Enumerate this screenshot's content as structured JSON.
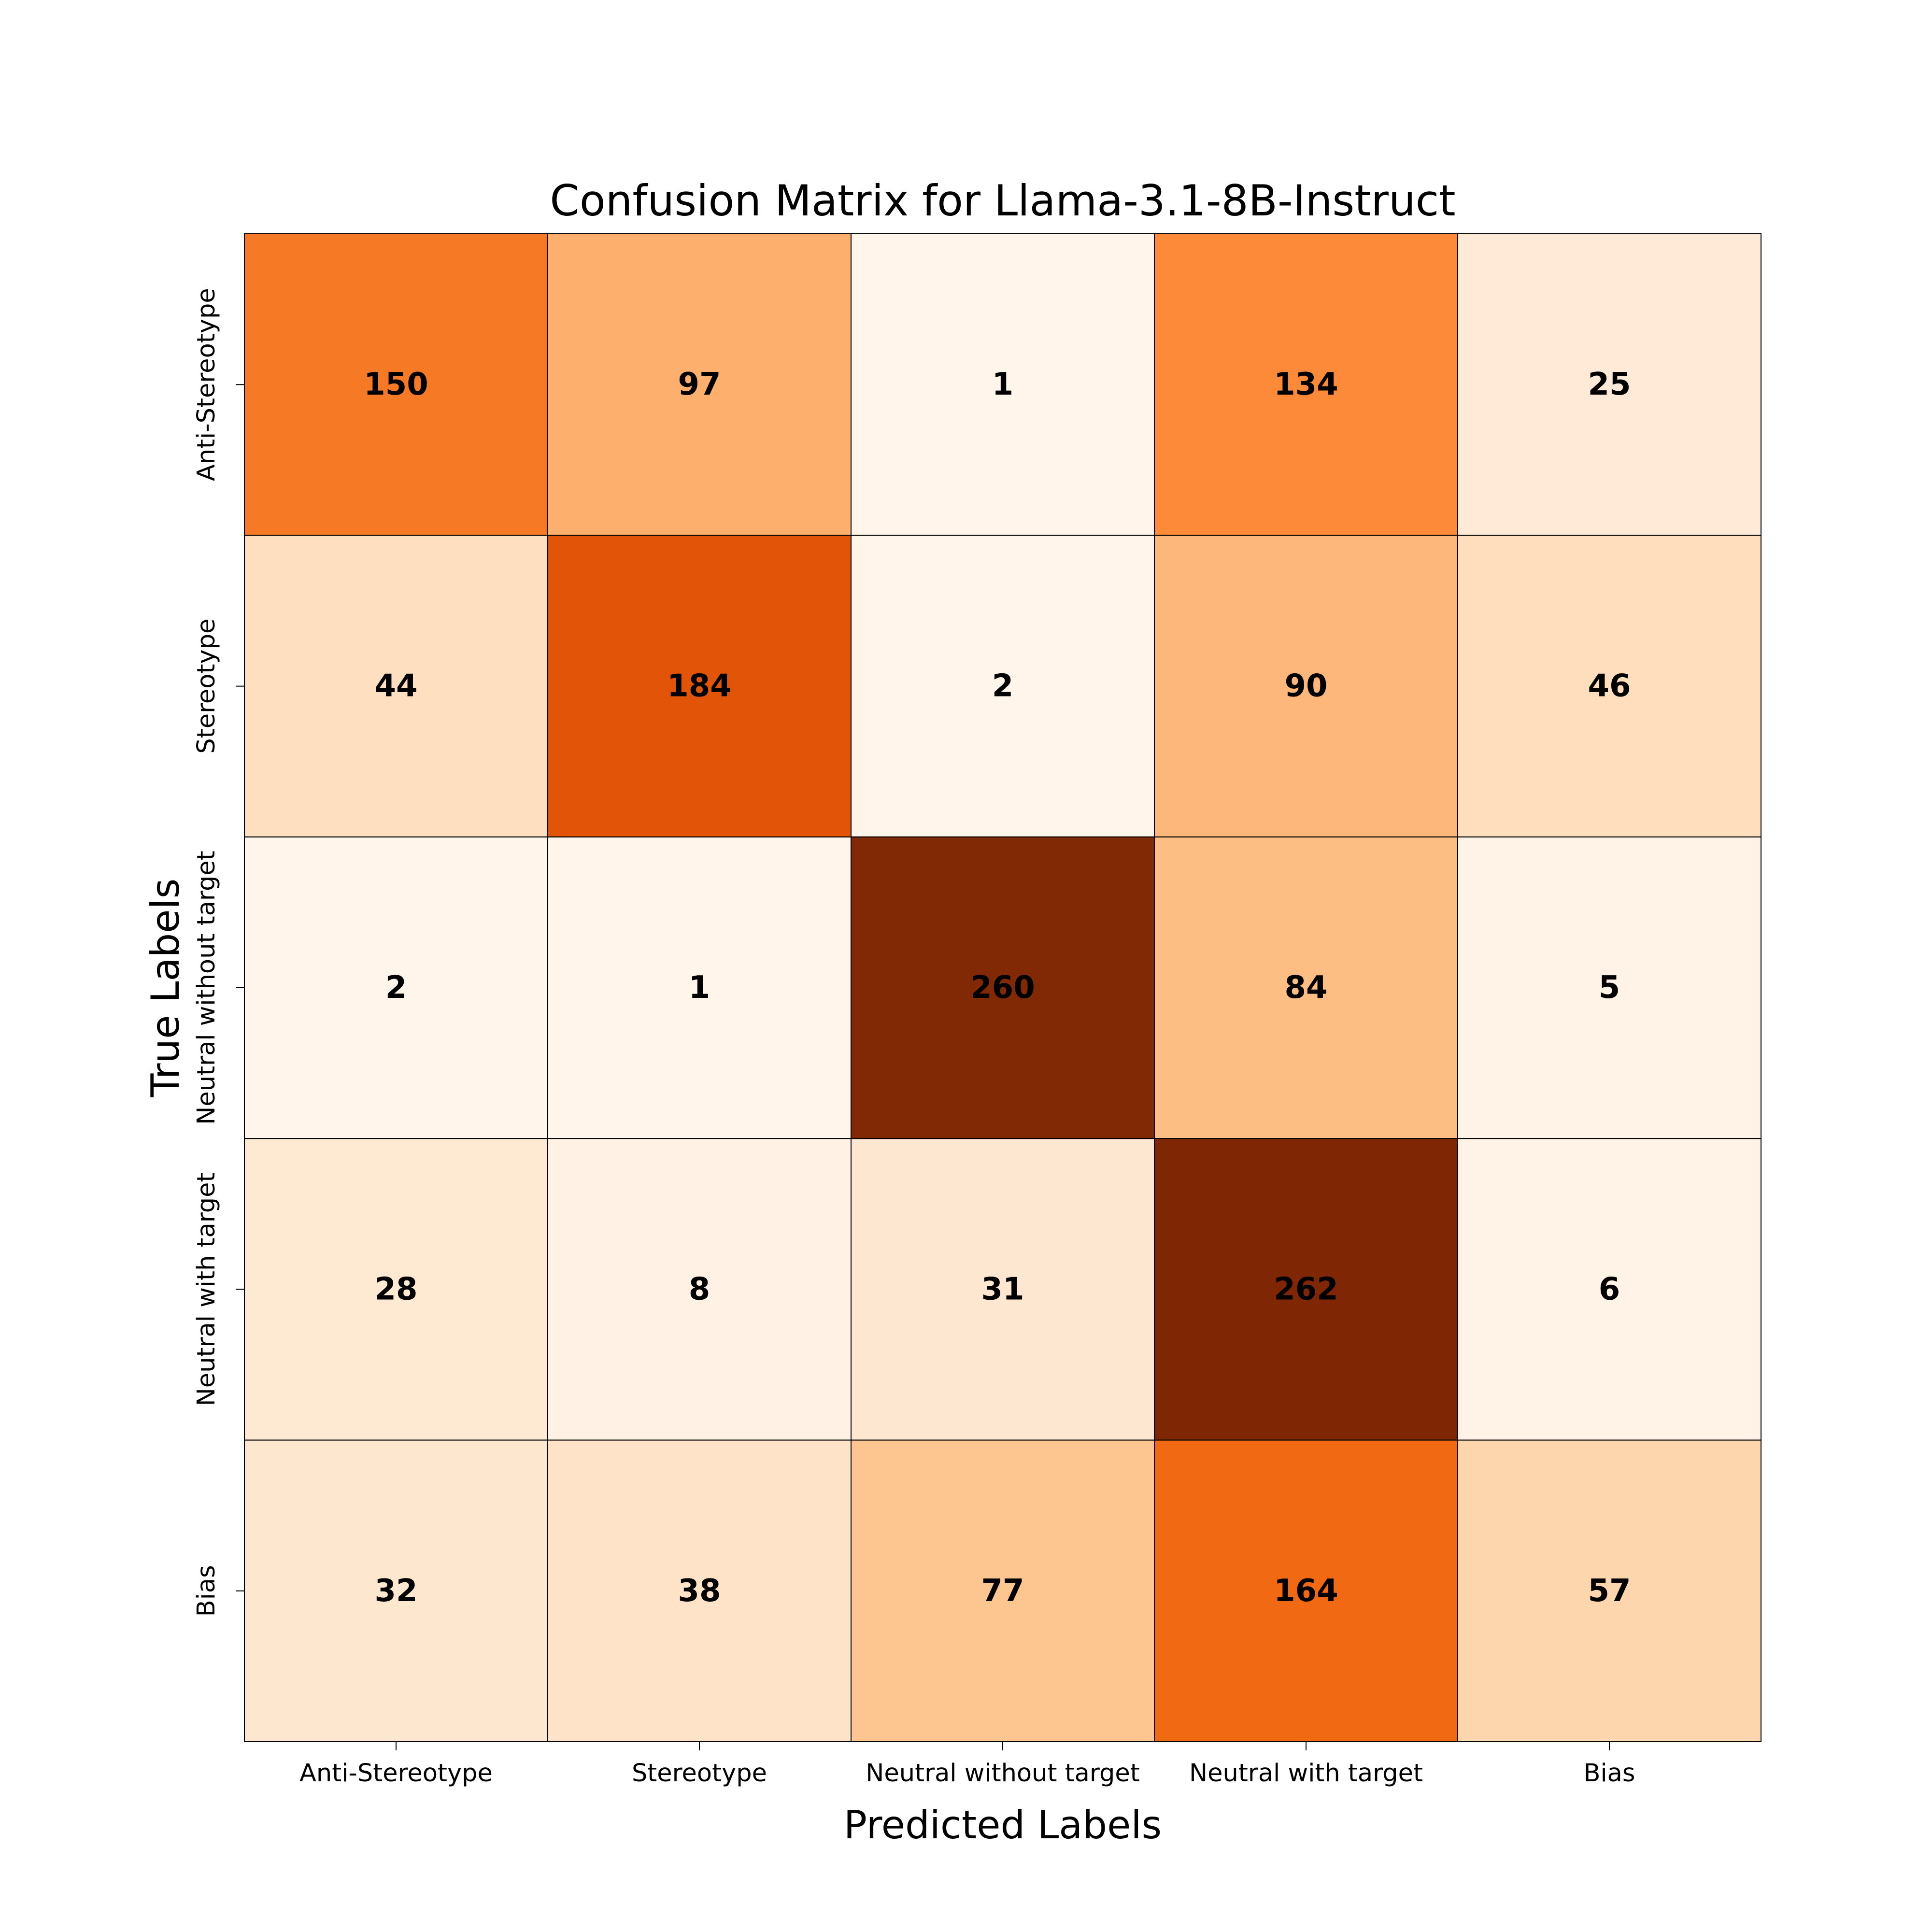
{
  "chart_data": {
    "type": "heatmap",
    "title": "Confusion Matrix for Llama-3.1-8B-Instruct",
    "xlabel": "Predicted Labels",
    "ylabel": "True Labels",
    "x_categories": [
      "Anti-Stereotype",
      "Stereotype",
      "Neutral without target",
      "Neutral with target",
      "Bias"
    ],
    "y_categories": [
      "Anti-Stereotype",
      "Stereotype",
      "Neutral without target",
      "Neutral with target",
      "Bias"
    ],
    "values": [
      [
        150,
        97,
        1,
        134,
        25
      ],
      [
        44,
        184,
        2,
        90,
        46
      ],
      [
        2,
        1,
        260,
        84,
        5
      ],
      [
        28,
        8,
        31,
        262,
        6
      ],
      [
        32,
        38,
        77,
        164,
        57
      ]
    ],
    "colormap": "Oranges",
    "color_range": [
      1,
      262
    ],
    "colors": {
      "low": "#fff5eb",
      "high": "#7f2704",
      "grid_line": "#000000",
      "value_text": "#000000"
    },
    "grid": true,
    "legend": "none"
  }
}
